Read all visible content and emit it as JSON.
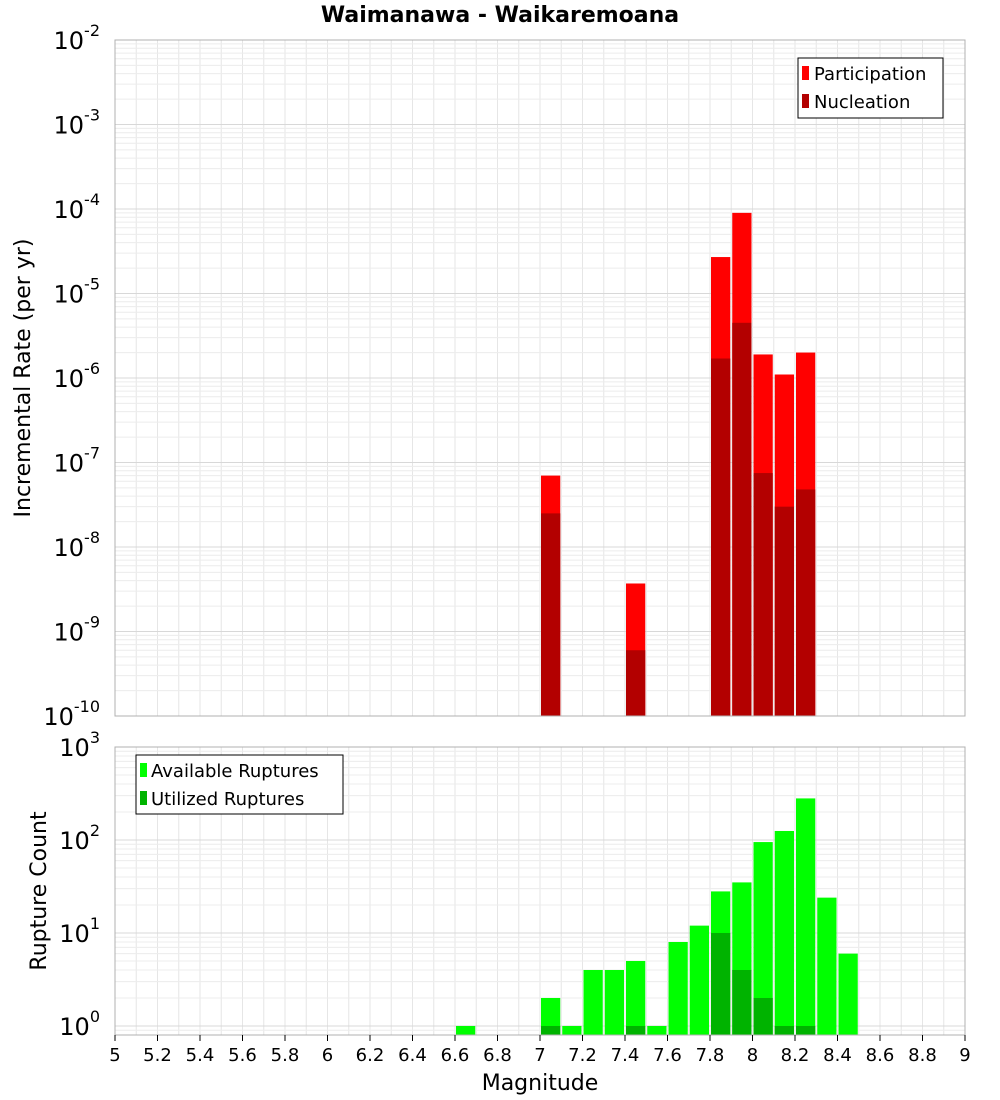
{
  "chart_data": [
    {
      "type": "bar",
      "title": "Waimanawa - Waikaremoana",
      "xlabel": "",
      "ylabel": "Incremental Rate (per yr)",
      "yscale": "log",
      "ylim": [
        1e-10,
        0.01
      ],
      "xlim": [
        5,
        9
      ],
      "grid": true,
      "legend_position": "top-right",
      "bar_width": 0.1,
      "colors": {
        "Participation": "#ff0000",
        "Nucleation": "#b30000"
      },
      "x": [
        7.05,
        7.45,
        7.85,
        7.95,
        8.05,
        8.15,
        8.25
      ],
      "series": [
        {
          "name": "Participation",
          "values": [
            7e-08,
            3.7e-09,
            2.7e-05,
            9e-05,
            1.9e-06,
            1.1e-06,
            2e-06
          ]
        },
        {
          "name": "Nucleation",
          "values": [
            2.5e-08,
            6e-10,
            1.7e-06,
            4.5e-06,
            7.5e-08,
            3e-08,
            4.8e-08
          ]
        }
      ],
      "yticks": [
        {
          "base": "10",
          "exp": "-2",
          "value": 0.01
        },
        {
          "base": "10",
          "exp": "-3",
          "value": 0.001
        },
        {
          "base": "10",
          "exp": "-4",
          "value": 0.0001
        },
        {
          "base": "10",
          "exp": "-5",
          "value": 1e-05
        },
        {
          "base": "10",
          "exp": "-6",
          "value": 1e-06
        },
        {
          "base": "10",
          "exp": "-7",
          "value": 1e-07
        },
        {
          "base": "10",
          "exp": "-8",
          "value": 1e-08
        },
        {
          "base": "10",
          "exp": "-9",
          "value": 1e-09
        },
        {
          "base": "10",
          "exp": "-10",
          "value": 1e-10
        }
      ]
    },
    {
      "type": "bar",
      "title": "",
      "xlabel": "Magnitude",
      "ylabel": "Rupture Count",
      "yscale": "log",
      "ylim": [
        0.8,
        1000
      ],
      "xlim": [
        5,
        9
      ],
      "grid": true,
      "legend_position": "top-left",
      "bar_width": 0.1,
      "colors": {
        "Available Ruptures": "#00ff00",
        "Utilized Ruptures": "#00b300"
      },
      "series": [
        {
          "name": "Available Ruptures",
          "x": [
            6.65,
            7.05,
            7.15,
            7.25,
            7.35,
            7.45,
            7.55,
            7.65,
            7.75,
            7.85,
            7.95,
            8.05,
            8.15,
            8.25,
            8.35,
            8.45
          ],
          "values": [
            1,
            2,
            1,
            4,
            4,
            5,
            1,
            8,
            12,
            28,
            35,
            95,
            125,
            280,
            24,
            6
          ]
        },
        {
          "name": "Utilized Ruptures",
          "x": [
            7.05,
            7.45,
            7.85,
            7.95,
            8.05,
            8.15,
            8.25
          ],
          "values": [
            1,
            1,
            10,
            4,
            2,
            1,
            1
          ]
        }
      ],
      "yticks": [
        {
          "base": "10",
          "exp": "3",
          "value": 1000
        },
        {
          "base": "10",
          "exp": "2",
          "value": 100
        },
        {
          "base": "10",
          "exp": "1",
          "value": 10
        },
        {
          "base": "10",
          "exp": "0",
          "value": 1
        }
      ],
      "xticks": [
        "5",
        "5.2",
        "5.4",
        "5.6",
        "5.8",
        "6",
        "6.2",
        "6.4",
        "6.6",
        "6.8",
        "7",
        "7.2",
        "7.4",
        "7.6",
        "7.8",
        "8",
        "8.2",
        "8.4",
        "8.6",
        "8.8",
        "9"
      ]
    }
  ]
}
